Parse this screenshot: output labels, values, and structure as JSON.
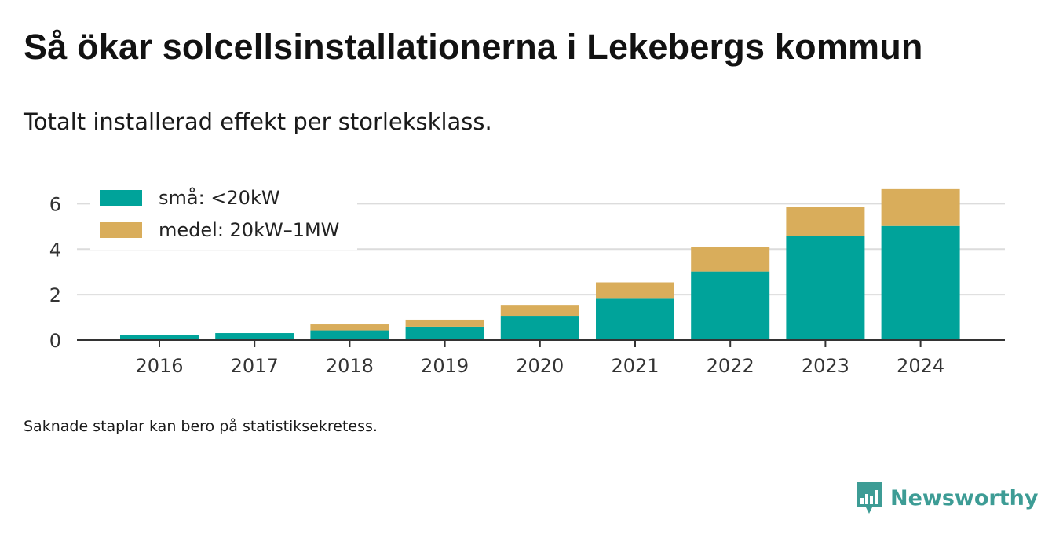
{
  "header": {
    "title": "Så ökar solcellsinstallationerna i Lekebergs kommun",
    "subtitle": "Totalt installerad effekt per storleksklass."
  },
  "footnote": "Saknade staplar kan bero på statistiksekretess.",
  "brand": {
    "name": "Newsworthy",
    "icon": "newsworthy-logo-icon",
    "color": "#3d9c95"
  },
  "chart_data": {
    "type": "bar",
    "stacked": true,
    "categories": [
      "2016",
      "2017",
      "2018",
      "2019",
      "2020",
      "2021",
      "2022",
      "2023",
      "2024"
    ],
    "series": [
      {
        "name": "små: <20kW",
        "color": "#00a39a",
        "values": [
          0.22,
          0.31,
          0.43,
          0.59,
          1.07,
          1.82,
          3.02,
          4.58,
          5.02
        ]
      },
      {
        "name": "medel: 20kW–1MW",
        "color": "#d9ad5b",
        "values": [
          0.0,
          0.0,
          0.26,
          0.31,
          0.48,
          0.72,
          1.08,
          1.28,
          1.62
        ]
      }
    ],
    "y_ticks": [
      0,
      2,
      4,
      6
    ],
    "ylim": [
      0,
      6.67
    ],
    "grid": true,
    "legend_position": "top-left"
  }
}
